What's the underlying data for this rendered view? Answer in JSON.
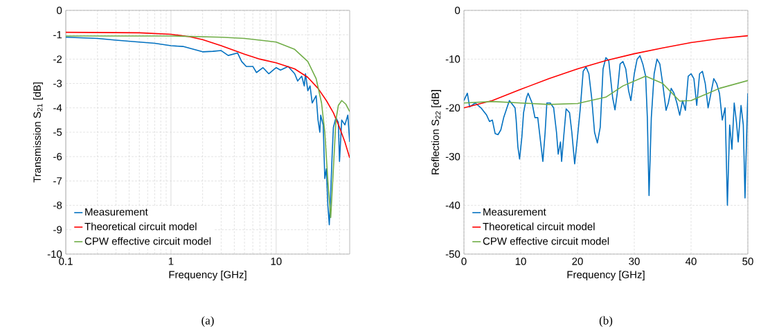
{
  "chart_data": [
    {
      "type": "line",
      "xlabel": "Frequency [GHz]",
      "ylabel": "Transmission S$_{21}$ [dB]",
      "log": "x",
      "grid": true,
      "legend": "bottom left",
      "xlim": [
        0.1,
        50
      ],
      "ylim": [
        -10,
        0
      ],
      "xticks": [
        0.1,
        1,
        10
      ],
      "yticks": [
        -10,
        -9,
        -8,
        -7,
        -6,
        -5,
        -4,
        -3,
        -2,
        -1,
        0
      ],
      "annotations": [
        "(a)"
      ],
      "series": [
        {
          "name": "Measurement",
          "color": "#0070c0",
          "x": [
            0.1,
            0.2,
            0.3,
            0.5,
            0.7,
            1.0,
            1.3,
            2,
            2.5,
            3,
            3.5,
            4.3,
            4.7,
            5.2,
            6,
            6.5,
            7.5,
            8.5,
            10,
            11,
            13,
            15,
            16,
            17.5,
            18.5,
            19,
            20,
            21,
            22,
            24,
            25,
            26,
            26.5,
            28,
            29,
            30,
            31,
            32,
            33,
            34,
            35,
            37,
            39,
            40,
            42,
            45,
            48,
            50
          ],
          "values": [
            -1.1,
            -1.15,
            -1.22,
            -1.3,
            -1.35,
            -1.45,
            -1.48,
            -1.7,
            -1.68,
            -1.65,
            -1.85,
            -1.75,
            -2.1,
            -2.3,
            -2.3,
            -2.55,
            -2.35,
            -2.6,
            -2.35,
            -2.45,
            -2.3,
            -2.6,
            -2.9,
            -2.7,
            -3.1,
            -2.6,
            -3.3,
            -3.1,
            -3.8,
            -3.5,
            -4.5,
            -5.0,
            -4.3,
            -4.7,
            -6.9,
            -6.5,
            -8.0,
            -8.8,
            -7.5,
            -6.0,
            -4.8,
            -4.4,
            -4.6,
            -6.2,
            -4.5,
            -4.7,
            -4.3,
            -5.4
          ]
        },
        {
          "name": "Theoretical circuit model",
          "color": "#ff0000",
          "x": [
            0.1,
            0.5,
            1,
            1.5,
            2,
            3,
            5,
            7,
            10,
            15,
            20,
            25,
            30,
            35,
            40,
            45,
            50
          ],
          "values": [
            -0.9,
            -0.92,
            -0.98,
            -1.08,
            -1.2,
            -1.45,
            -1.8,
            -2.0,
            -2.15,
            -2.4,
            -2.75,
            -3.2,
            -3.7,
            -4.2,
            -4.8,
            -5.4,
            -6.05
          ]
        },
        {
          "name": "CPW effective circuit model",
          "color": "#70ad47",
          "x": [
            0.1,
            1,
            3,
            5,
            8,
            10,
            15,
            20,
            24,
            27,
            29,
            31,
            33,
            35,
            37,
            39,
            42,
            46,
            50
          ],
          "values": [
            -1.05,
            -1.05,
            -1.1,
            -1.15,
            -1.25,
            -1.3,
            -1.6,
            -2.1,
            -2.8,
            -3.8,
            -5,
            -7,
            -8.5,
            -6.5,
            -4.5,
            -3.9,
            -3.7,
            -3.85,
            -4.15
          ]
        }
      ]
    },
    {
      "type": "line",
      "xlabel": "Frequency [GHz]",
      "ylabel": "Reflection S$_{22}$ [dB]",
      "grid": true,
      "legend": "bottom left",
      "xlim": [
        0,
        50
      ],
      "ylim": [
        -50,
        0
      ],
      "xticks": [
        0,
        10,
        20,
        30,
        40,
        50
      ],
      "yticks": [
        -50,
        -40,
        -30,
        -20,
        -10,
        0
      ],
      "annotations": [
        "(b)"
      ],
      "series": [
        {
          "name": "Measurement",
          "color": "#0070c0",
          "x": [
            0,
            0.6,
            1,
            2,
            3,
            4,
            4.5,
            5,
            5.5,
            6,
            6.5,
            7,
            8,
            9,
            9.2,
            9.5,
            9.8,
            10.2,
            10.5,
            11,
            11.3,
            12,
            12.5,
            13,
            13.5,
            13.9,
            14.3,
            14.6,
            15.2,
            15.8,
            16.3,
            16.6,
            17,
            17.2,
            17.6,
            18,
            18.6,
            19,
            19.5,
            20,
            20.5,
            21,
            21.5,
            22,
            22.5,
            23,
            23.5,
            24,
            24.5,
            25,
            25.5,
            26.2,
            26.6,
            27,
            27.5,
            28,
            28.5,
            29,
            29.4,
            30,
            30.5,
            31,
            31.5,
            32,
            32.3,
            32.6,
            33,
            33.5,
            34,
            34.5,
            35,
            35.6,
            36,
            36.5,
            37,
            37.5,
            38,
            38.5,
            39,
            39.5,
            40,
            40.5,
            41,
            41.5,
            42,
            42.5,
            43,
            43.5,
            44,
            44.5,
            45,
            45.5,
            46,
            46.4,
            46.8,
            47.2,
            47.6,
            48,
            48.3,
            48.8,
            49.2,
            49.5,
            49.8,
            50
          ],
          "values": [
            -18.5,
            -17,
            -19.8,
            -19,
            -20,
            -21.5,
            -22.8,
            -22.5,
            -25.3,
            -25.5,
            -24.5,
            -22,
            -18.5,
            -20,
            -22.5,
            -28,
            -30.5,
            -26,
            -21,
            -18,
            -17,
            -19,
            -22,
            -22,
            -27,
            -31,
            -25,
            -19,
            -19,
            -20,
            -25,
            -29.5,
            -27,
            -31,
            -25.5,
            -20.2,
            -21,
            -25,
            -31.5,
            -26,
            -20,
            -12.5,
            -11.6,
            -13,
            -18,
            -25,
            -27.2,
            -24,
            -12,
            -9.7,
            -10.3,
            -18,
            -20.4,
            -17,
            -11,
            -10.5,
            -12,
            -16.5,
            -18.5,
            -13,
            -10,
            -9.3,
            -11,
            -13.5,
            -22,
            -38,
            -22,
            -13,
            -10,
            -11,
            -15,
            -20.5,
            -19,
            -16,
            -17,
            -19,
            -21.5,
            -18.5,
            -20.5,
            -13.5,
            -13,
            -14,
            -19.5,
            -13,
            -12.5,
            -15,
            -20,
            -17,
            -14,
            -15,
            -17,
            -22.5,
            -20,
            -40,
            -23.5,
            -28.5,
            -19,
            -23,
            -27,
            -19.5,
            -23.5,
            -38.5,
            -25,
            -17
          ]
        },
        {
          "name": "Theoretical circuit model",
          "color": "#ff0000",
          "x": [
            0,
            5,
            10,
            15,
            20,
            25,
            30,
            35,
            40,
            45,
            50
          ],
          "values": [
            -20.0,
            -18.5,
            -16.2,
            -14.0,
            -12.0,
            -10.3,
            -8.9,
            -7.7,
            -6.6,
            -5.8,
            -5.2
          ]
        },
        {
          "name": "CPW effective circuit model",
          "color": "#70ad47",
          "x": [
            0,
            5,
            10,
            15,
            20,
            25,
            28,
            32,
            35,
            38,
            40,
            45,
            50
          ],
          "values": [
            -19,
            -18.7,
            -19,
            -19.3,
            -19.1,
            -17.8,
            -15.5,
            -13.5,
            -15,
            -18.6,
            -18.5,
            -16,
            -14.4
          ]
        }
      ]
    }
  ]
}
